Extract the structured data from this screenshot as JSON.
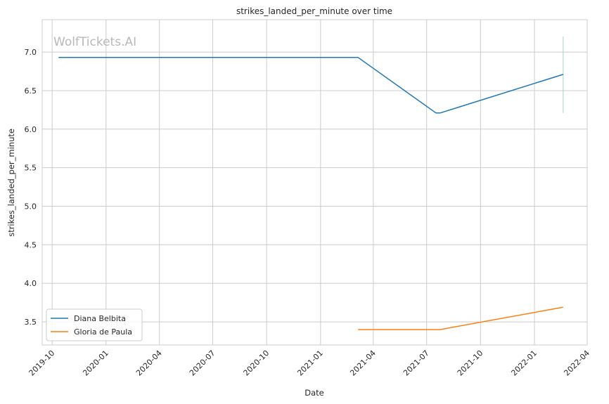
{
  "chart_data": {
    "type": "line",
    "title": "strikes_landed_per_minute over time",
    "xlabel": "Date",
    "ylabel": "strikes_landed_per_minute",
    "watermark": "WolfTickets.AI",
    "x_ticks": [
      "2019-10",
      "2020-01",
      "2020-04",
      "2020-07",
      "2020-10",
      "2021-01",
      "2021-04",
      "2021-07",
      "2021-10",
      "2022-01",
      "2022-04"
    ],
    "y_ticks": [
      "3.5",
      "4.0",
      "4.5",
      "5.0",
      "5.5",
      "6.0",
      "6.5",
      "7.0"
    ],
    "xlim": [
      "2019-09-14",
      "2022-04-01"
    ],
    "ylim": [
      3.2,
      7.42
    ],
    "grid": true,
    "legend_position": "lower-left",
    "series": [
      {
        "name": "Diana Belbita",
        "color": "#1f77b4",
        "x": [
          "2019-10-12",
          "2021-03-06",
          "2021-07-17",
          "2021-07-24",
          "2022-02-19"
        ],
        "y": [
          6.93,
          6.93,
          6.21,
          6.21,
          6.71
        ]
      },
      {
        "name": "Gloria de Paula",
        "color": "#ff7f0e",
        "x": [
          "2021-03-06",
          "2021-07-24",
          "2022-02-19"
        ],
        "y": [
          3.4,
          3.4,
          3.69
        ]
      }
    ],
    "vertical_segments": [
      {
        "x": "2022-02-19",
        "y": [
          6.21,
          7.2
        ],
        "color": "#a8d0c8"
      }
    ]
  }
}
